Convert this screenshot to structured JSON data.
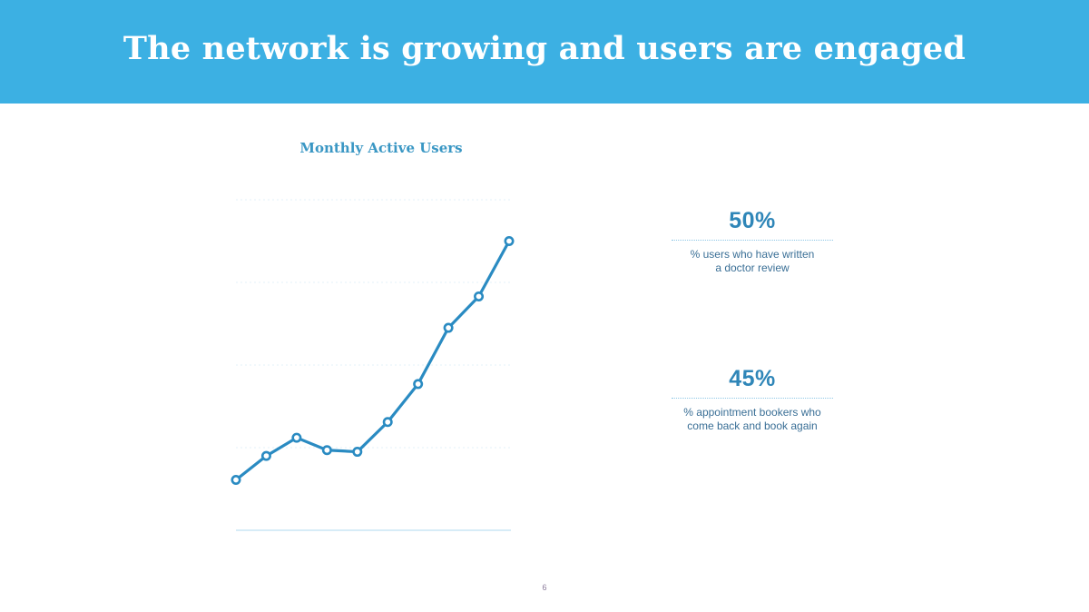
{
  "slide": {
    "title": "The network is growing and users are engaged",
    "page_number": "6"
  },
  "chart_data": {
    "type": "line",
    "title": "Monthly Active Users",
    "xlabel": "",
    "ylabel": "",
    "x": [
      1,
      2,
      3,
      4,
      5,
      6,
      7,
      8,
      9,
      10
    ],
    "series": [
      {
        "values": [
          6.1,
          9.0,
          11.2,
          9.7,
          9.5,
          13.1,
          17.7,
          24.5,
          28.3,
          35.0
        ]
      }
    ],
    "ylim": [
      0,
      40
    ],
    "xlim": [
      1,
      10
    ],
    "gridlines": [
      10,
      20,
      30,
      40
    ],
    "grid": true,
    "legend": "none"
  },
  "stats": [
    {
      "value": "50%",
      "line1": "% users who have written",
      "line2": "a doctor review"
    },
    {
      "value": "45%",
      "line1": "% appointment bookers who",
      "line2": "come back and book again"
    }
  ],
  "colors": {
    "header": "#3cb0e3",
    "line": "#2a8bc2",
    "accent_text": "#2f86b8"
  }
}
